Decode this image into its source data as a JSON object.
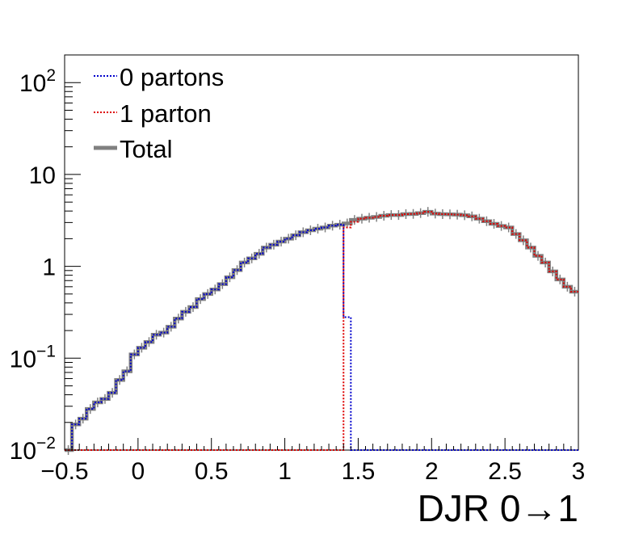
{
  "chart_data": {
    "type": "line",
    "title": "",
    "xlabel": "DJR 0→1",
    "ylabel": "",
    "xlim": [
      -0.5,
      3.0
    ],
    "ylim": [
      0.01,
      200
    ],
    "yscale": "log",
    "grid": false,
    "legend_position": "top-left",
    "x_tick_labels": [
      "−0.5",
      "0",
      "0.5",
      "1",
      "1.5",
      "2",
      "2.5",
      "3"
    ],
    "x_tick_values": [
      -0.5,
      0,
      0.5,
      1,
      1.5,
      2,
      2.5,
      3
    ],
    "y_tick_values": [
      0.01,
      0.1,
      1,
      10,
      100
    ],
    "y_tick_labels": [
      {
        "base": "10",
        "exp": "−2"
      },
      {
        "base": "10",
        "exp": "−1"
      },
      {
        "base": "1",
        "exp": ""
      },
      {
        "base": "10",
        "exp": ""
      },
      {
        "base": "10",
        "exp": "2"
      }
    ],
    "bin_edges": [
      -0.5,
      -0.45,
      -0.4,
      -0.35,
      -0.3,
      -0.25,
      -0.2,
      -0.15,
      -0.1,
      -0.05,
      0.0,
      0.05,
      0.1,
      0.15,
      0.2,
      0.25,
      0.3,
      0.35,
      0.4,
      0.45,
      0.5,
      0.55,
      0.6,
      0.65,
      0.7,
      0.75,
      0.8,
      0.85,
      0.9,
      0.95,
      1.0,
      1.05,
      1.1,
      1.15,
      1.2,
      1.25,
      1.3,
      1.35,
      1.4,
      1.45,
      1.5,
      1.55,
      1.6,
      1.65,
      1.7,
      1.75,
      1.8,
      1.85,
      1.9,
      1.95,
      2.0,
      2.05,
      2.1,
      2.15,
      2.2,
      2.25,
      2.3,
      2.35,
      2.4,
      2.45,
      2.5,
      2.55,
      2.6,
      2.65,
      2.7,
      2.75,
      2.8,
      2.85,
      2.9,
      2.95,
      3.0
    ],
    "series": [
      {
        "name": "0 partons",
        "color": "#0000cc",
        "style": "dotted",
        "values": [
          0.009,
          0.019,
          0.022,
          0.028,
          0.033,
          0.036,
          0.042,
          0.058,
          0.072,
          0.11,
          0.13,
          0.15,
          0.18,
          0.19,
          0.22,
          0.27,
          0.32,
          0.36,
          0.44,
          0.5,
          0.56,
          0.64,
          0.76,
          0.91,
          1.1,
          1.22,
          1.37,
          1.6,
          1.72,
          1.86,
          2.0,
          2.18,
          2.35,
          2.47,
          2.57,
          2.65,
          2.77,
          2.84,
          0.28,
          0.01,
          0.01,
          0.01,
          0.01,
          0.01,
          0.01,
          0.01,
          0.01,
          0.01,
          0.01,
          0.01,
          0.01,
          0.01,
          0.01,
          0.01,
          0.01,
          0.01,
          0.01,
          0.01,
          0.01,
          0.01,
          0.01,
          0.01,
          0.01,
          0.01,
          0.01,
          0.01,
          0.01,
          0.01,
          0.01,
          0.01
        ]
      },
      {
        "name": "1 parton",
        "color": "#dd0000",
        "style": "dotted",
        "values": [
          0.01,
          0.01,
          0.01,
          0.01,
          0.01,
          0.01,
          0.01,
          0.01,
          0.01,
          0.01,
          0.01,
          0.01,
          0.01,
          0.01,
          0.01,
          0.01,
          0.01,
          0.01,
          0.01,
          0.01,
          0.01,
          0.01,
          0.01,
          0.01,
          0.01,
          0.01,
          0.01,
          0.01,
          0.01,
          0.01,
          0.01,
          0.01,
          0.01,
          0.01,
          0.01,
          0.01,
          0.01,
          0.01,
          2.65,
          3.05,
          3.3,
          3.38,
          3.45,
          3.55,
          3.62,
          3.62,
          3.7,
          3.72,
          3.8,
          3.92,
          3.75,
          3.7,
          3.68,
          3.65,
          3.6,
          3.5,
          3.3,
          3.1,
          2.9,
          2.75,
          2.65,
          2.25,
          1.92,
          1.6,
          1.3,
          1.1,
          0.88,
          0.72,
          0.6,
          0.53
        ]
      },
      {
        "name": "Total",
        "color": "#808080",
        "style": "solid",
        "values": [
          0.009,
          0.019,
          0.022,
          0.028,
          0.033,
          0.036,
          0.042,
          0.058,
          0.072,
          0.11,
          0.13,
          0.15,
          0.18,
          0.19,
          0.22,
          0.27,
          0.32,
          0.36,
          0.44,
          0.5,
          0.56,
          0.64,
          0.76,
          0.91,
          1.1,
          1.22,
          1.37,
          1.6,
          1.72,
          1.86,
          2.0,
          2.18,
          2.35,
          2.47,
          2.57,
          2.65,
          2.77,
          2.84,
          2.93,
          3.2,
          3.3,
          3.38,
          3.45,
          3.55,
          3.62,
          3.62,
          3.7,
          3.72,
          3.8,
          3.92,
          3.75,
          3.7,
          3.68,
          3.65,
          3.6,
          3.5,
          3.3,
          3.1,
          2.9,
          2.75,
          2.65,
          2.25,
          1.92,
          1.6,
          1.3,
          1.1,
          0.88,
          0.72,
          0.6,
          0.53
        ]
      }
    ]
  }
}
